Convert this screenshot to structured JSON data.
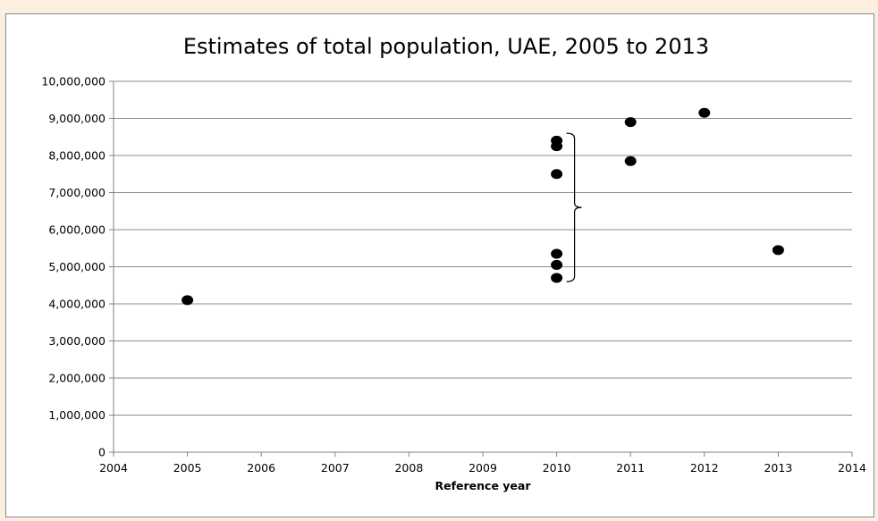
{
  "chart_data": {
    "type": "scatter",
    "title": "Estimates of total population, UAE, 2005 to 2013",
    "xlabel": "Reference year",
    "ylabel": "",
    "xlim": [
      2004,
      2014
    ],
    "ylim": [
      0,
      10000000
    ],
    "x_ticks": [
      2004,
      2005,
      2006,
      2007,
      2008,
      2009,
      2010,
      2011,
      2012,
      2013,
      2014
    ],
    "x_tick_labels": [
      "2004",
      "2005",
      "2006",
      "2007",
      "2008",
      "2009",
      "2010",
      "2011",
      "2012",
      "2013",
      "2014"
    ],
    "y_ticks": [
      0,
      1000000,
      2000000,
      3000000,
      4000000,
      5000000,
      6000000,
      7000000,
      8000000,
      9000000,
      10000000
    ],
    "y_tick_labels": [
      "0",
      "1,000,000",
      "2,000,000",
      "3,000,000",
      "4,000,000",
      "5,000,000",
      "6,000,000",
      "7,000,000",
      "8,000,000",
      "9,000,000",
      "10,000,000"
    ],
    "grid": "horizontal",
    "legend": "none",
    "marker_color": "#000000",
    "points": [
      {
        "x": 2005,
        "y": 4100000
      },
      {
        "x": 2010,
        "y": 8400000
      },
      {
        "x": 2010,
        "y": 8250000
      },
      {
        "x": 2010,
        "y": 7500000
      },
      {
        "x": 2010,
        "y": 5350000
      },
      {
        "x": 2010,
        "y": 5050000
      },
      {
        "x": 2010,
        "y": 4700000
      },
      {
        "x": 2011,
        "y": 8900000
      },
      {
        "x": 2011,
        "y": 7850000
      },
      {
        "x": 2012,
        "y": 9150000
      },
      {
        "x": 2013,
        "y": 5450000
      }
    ],
    "annotations": [
      {
        "type": "brace",
        "x": 2010,
        "y_range": [
          4600000,
          8600000
        ],
        "side": "right"
      }
    ]
  }
}
